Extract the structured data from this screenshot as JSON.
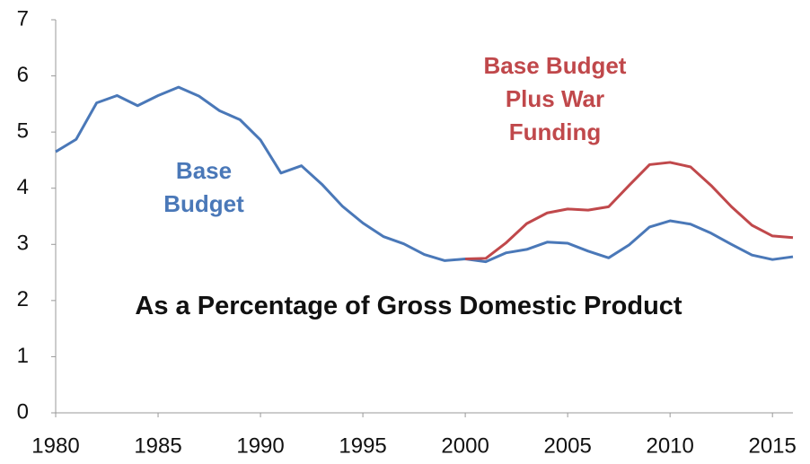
{
  "chart_data": {
    "type": "line",
    "title": "As a Percentage of Gross Domestic Product",
    "x": [
      1980,
      1981,
      1982,
      1983,
      1984,
      1985,
      1986,
      1987,
      1988,
      1989,
      1990,
      1991,
      1992,
      1993,
      1994,
      1995,
      1996,
      1997,
      1998,
      1999,
      2000,
      2001,
      2002,
      2003,
      2004,
      2005,
      2006,
      2007,
      2008,
      2009,
      2010,
      2011,
      2012,
      2013,
      2014,
      2015,
      2016
    ],
    "series": [
      {
        "name": "Base Budget",
        "color": "#4a78b8",
        "values": [
          4.65,
          4.87,
          5.52,
          5.65,
          5.47,
          5.65,
          5.8,
          5.64,
          5.38,
          5.22,
          4.86,
          4.27,
          4.4,
          4.07,
          3.68,
          3.38,
          3.14,
          3.01,
          2.82,
          2.71,
          2.74,
          2.69,
          2.85,
          2.91,
          3.04,
          3.02,
          2.88,
          2.76,
          2.99,
          3.31,
          3.42,
          3.36,
          3.2,
          3.0,
          2.81,
          2.73,
          2.78
        ]
      },
      {
        "name": "Base Budget Plus War Funding",
        "color": "#c0484b",
        "values": [
          null,
          null,
          null,
          null,
          null,
          null,
          null,
          null,
          null,
          null,
          null,
          null,
          null,
          null,
          null,
          null,
          null,
          null,
          null,
          null,
          2.74,
          2.75,
          3.03,
          3.37,
          3.56,
          3.63,
          3.61,
          3.67,
          4.05,
          4.42,
          4.46,
          4.38,
          4.05,
          3.67,
          3.34,
          3.15,
          3.12
        ]
      }
    ],
    "xlim": [
      1980,
      2016
    ],
    "xticks": [
      1980,
      1985,
      1990,
      1995,
      2000,
      2005,
      2010,
      2015
    ],
    "ylim": [
      0,
      7
    ],
    "yticks": [
      0,
      1,
      2,
      3,
      4,
      5,
      6,
      7
    ],
    "grid": false
  }
}
